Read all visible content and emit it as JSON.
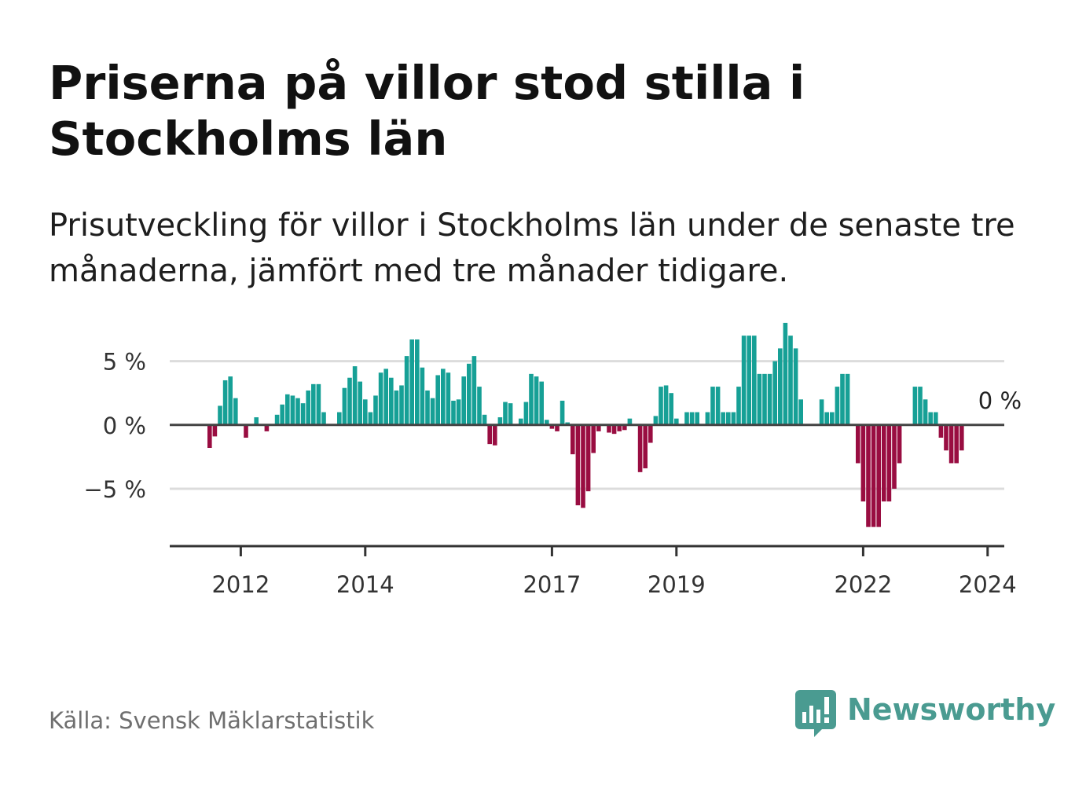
{
  "title": "Priserna på villor stod stilla i Stockholms län",
  "subtitle": "Prisutveckling för villor i Stockholms län under de senaste tre månaderna, jämfört med tre månader tidigare.",
  "source": "Källa: Svensk Mäklarstatistik",
  "brand": "Newsworthy",
  "colors": {
    "positive": "#16a096",
    "negative": "#990d41",
    "zero_line": "#444444",
    "grid": "#dcdcdc",
    "axis": "#333333",
    "brand": "#4a9b91"
  },
  "chart_data": {
    "type": "bar",
    "ylim": [
      -9.5,
      5.9
    ],
    "yticks": [
      {
        "value": 5,
        "label": "5 %"
      },
      {
        "value": 0,
        "label": "0 %"
      },
      {
        "value": -5,
        "label": "−5 %"
      }
    ],
    "xticks": [
      {
        "index": 6,
        "label": "2012"
      },
      {
        "index": 30,
        "label": "2014"
      },
      {
        "index": 66,
        "label": "2017"
      },
      {
        "index": 90,
        "label": "2019"
      },
      {
        "index": 126,
        "label": "2022"
      },
      {
        "index": 150,
        "label": "2024"
      }
    ],
    "annotation": {
      "index": 151,
      "text": "0 %"
    },
    "values": [
      -1.8,
      -0.9,
      1.5,
      3.5,
      3.8,
      2.1,
      0.0,
      -1.0,
      0.0,
      0.6,
      0.0,
      -0.5,
      0.0,
      0.8,
      1.6,
      2.4,
      2.3,
      2.1,
      1.7,
      2.7,
      3.2,
      3.2,
      1.0,
      0.0,
      0.0,
      1.0,
      2.9,
      3.7,
      4.6,
      3.4,
      2.0,
      1.0,
      2.3,
      4.1,
      4.4,
      3.7,
      2.7,
      3.1,
      5.4,
      6.7,
      6.7,
      4.5,
      2.7,
      2.1,
      3.9,
      4.4,
      4.1,
      1.9,
      2.0,
      3.8,
      4.8,
      5.4,
      3.0,
      0.8,
      -1.5,
      -1.6,
      0.6,
      1.8,
      1.7,
      0.0,
      0.5,
      1.8,
      4.0,
      3.8,
      3.4,
      0.4,
      -0.3,
      -0.5,
      1.9,
      0.2,
      -2.3,
      -6.3,
      -6.5,
      -5.2,
      -2.2,
      -0.5,
      0.0,
      -0.6,
      -0.7,
      -0.5,
      -0.4,
      0.5,
      0.0,
      -3.7,
      -3.4,
      -1.4,
      0.7,
      3.0,
      3.1,
      2.5,
      0.5,
      0.0,
      1.0,
      1.0,
      1.0,
      0.0,
      1.0,
      3.0,
      3.0,
      1.0,
      1.0,
      1.0,
      3.0,
      7.0,
      7.0,
      7.0,
      4.0,
      4.0,
      4.0,
      5.0,
      6.0,
      8.0,
      7.0,
      6.0,
      2.0,
      0.0,
      0.0,
      0.0,
      2.0,
      1.0,
      1.0,
      3.0,
      4.0,
      4.0,
      0.0,
      -3.0,
      -6.0,
      -8.0,
      -8.0,
      -8.0,
      -6.0,
      -6.0,
      -5.0,
      -3.0,
      0.0,
      0.0,
      3.0,
      3.0,
      2.0,
      1.0,
      1.0,
      -1.0,
      -2.0,
      -3.0,
      -3.0,
      -2.0
    ]
  }
}
